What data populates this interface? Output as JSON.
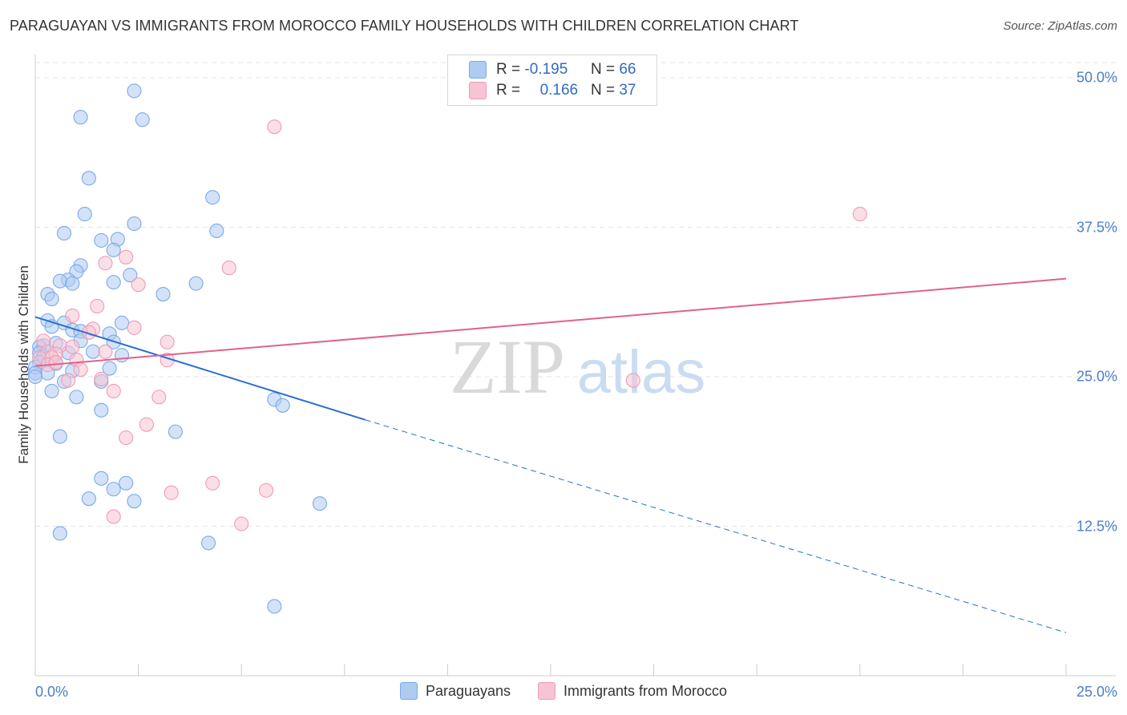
{
  "chart_data": {
    "type": "scatter",
    "title": "PARAGUAYAN VS IMMIGRANTS FROM MOROCCO FAMILY HOUSEHOLDS WITH CHILDREN CORRELATION CHART",
    "source": "Source: ZipAtlas.com",
    "xlabel": "",
    "ylabel": "Family Households with Children",
    "xlim": [
      0,
      25
    ],
    "ylim": [
      0,
      52
    ],
    "x_tick_labels": {
      "left": "0.0%",
      "right": "25.0%"
    },
    "y_ticks": [
      {
        "value": 12.5,
        "label": "12.5%"
      },
      {
        "value": 25.0,
        "label": "25.0%"
      },
      {
        "value": 37.5,
        "label": "37.5%"
      },
      {
        "value": 50.0,
        "label": "50.0%"
      }
    ],
    "watermark": {
      "zip": "ZIP",
      "atlas": "atlas"
    },
    "legend": {
      "rows": [
        {
          "r_label": "R =",
          "r_value": "-0.195",
          "n_label": "N =",
          "n_value": "66"
        },
        {
          "r_label": "R =",
          "r_value": "0.166",
          "n_label": "N =",
          "n_value": "37"
        }
      ]
    },
    "series": [
      {
        "name": "Paraguayans",
        "color": "#7aaae8",
        "fill": "#aecbf2",
        "line_color": "#2a6fd1",
        "trend": {
          "x_start": 0.0,
          "y_start": 30.0,
          "x_solid_end": 8.0,
          "y_solid_end": 21.4,
          "x_end": 25.0,
          "y_end": 3.6
        },
        "points": [
          [
            2.4,
            48.9
          ],
          [
            1.1,
            46.7
          ],
          [
            2.6,
            46.5
          ],
          [
            1.3,
            41.6
          ],
          [
            4.3,
            40.0
          ],
          [
            1.2,
            38.6
          ],
          [
            2.4,
            37.8
          ],
          [
            0.7,
            37.0
          ],
          [
            4.4,
            37.2
          ],
          [
            1.6,
            36.4
          ],
          [
            2.0,
            36.5
          ],
          [
            1.9,
            35.6
          ],
          [
            1.1,
            34.3
          ],
          [
            1.0,
            33.8
          ],
          [
            2.3,
            33.5
          ],
          [
            0.8,
            33.1
          ],
          [
            0.6,
            33.0
          ],
          [
            0.9,
            32.8
          ],
          [
            1.9,
            32.9
          ],
          [
            3.9,
            32.8
          ],
          [
            0.3,
            31.9
          ],
          [
            3.1,
            31.9
          ],
          [
            0.4,
            31.5
          ],
          [
            0.3,
            29.7
          ],
          [
            0.7,
            29.5
          ],
          [
            2.1,
            29.5
          ],
          [
            0.4,
            29.2
          ],
          [
            0.9,
            28.9
          ],
          [
            1.1,
            28.8
          ],
          [
            1.8,
            28.6
          ],
          [
            1.1,
            28.0
          ],
          [
            1.9,
            27.9
          ],
          [
            0.2,
            27.6
          ],
          [
            0.1,
            27.5
          ],
          [
            0.5,
            27.8
          ],
          [
            0.1,
            27.0
          ],
          [
            0.2,
            26.7
          ],
          [
            0.8,
            27.0
          ],
          [
            1.4,
            27.1
          ],
          [
            2.1,
            26.8
          ],
          [
            0.1,
            26.2
          ],
          [
            0.5,
            26.1
          ],
          [
            0.0,
            25.8
          ],
          [
            1.8,
            25.7
          ],
          [
            0.9,
            25.5
          ],
          [
            0.0,
            25.3
          ],
          [
            0.3,
            25.3
          ],
          [
            0.0,
            25.0
          ],
          [
            0.7,
            24.6
          ],
          [
            1.6,
            24.6
          ],
          [
            0.4,
            23.8
          ],
          [
            1.0,
            23.3
          ],
          [
            5.8,
            23.1
          ],
          [
            6.0,
            22.6
          ],
          [
            1.6,
            22.2
          ],
          [
            3.4,
            20.4
          ],
          [
            0.6,
            20.0
          ],
          [
            1.6,
            16.5
          ],
          [
            2.2,
            16.1
          ],
          [
            1.9,
            15.6
          ],
          [
            1.3,
            14.8
          ],
          [
            2.4,
            14.6
          ],
          [
            6.9,
            14.4
          ],
          [
            0.6,
            11.9
          ],
          [
            4.2,
            11.1
          ],
          [
            5.8,
            5.8
          ]
        ]
      },
      {
        "name": "Immigrants from Morocco",
        "color": "#f29ab5",
        "fill": "#f7c4d4",
        "line_color": "#e0628c",
        "trend": {
          "x_start": 0.0,
          "y_start": 25.9,
          "x_end": 25.0,
          "y_end": 33.2
        },
        "points": [
          [
            5.8,
            45.9
          ],
          [
            20.0,
            38.6
          ],
          [
            2.2,
            35.0
          ],
          [
            1.7,
            34.5
          ],
          [
            4.7,
            34.1
          ],
          [
            2.5,
            32.7
          ],
          [
            1.5,
            30.9
          ],
          [
            2.4,
            29.1
          ],
          [
            1.4,
            29.0
          ],
          [
            1.3,
            28.7
          ],
          [
            3.2,
            27.9
          ],
          [
            0.2,
            28.0
          ],
          [
            0.6,
            27.6
          ],
          [
            0.9,
            27.5
          ],
          [
            0.3,
            27.1
          ],
          [
            0.5,
            26.9
          ],
          [
            1.7,
            27.1
          ],
          [
            0.1,
            26.6
          ],
          [
            0.4,
            26.6
          ],
          [
            1.0,
            26.4
          ],
          [
            3.2,
            26.4
          ],
          [
            0.3,
            26.0
          ],
          [
            0.5,
            26.2
          ],
          [
            1.1,
            25.6
          ],
          [
            1.6,
            24.8
          ],
          [
            0.8,
            24.7
          ],
          [
            14.5,
            24.7
          ],
          [
            1.9,
            23.8
          ],
          [
            3.0,
            23.3
          ],
          [
            2.7,
            21.0
          ],
          [
            2.2,
            19.9
          ],
          [
            4.3,
            16.1
          ],
          [
            3.3,
            15.3
          ],
          [
            5.6,
            15.5
          ],
          [
            1.9,
            13.3
          ],
          [
            5.0,
            12.7
          ],
          [
            0.9,
            30.1
          ]
        ]
      }
    ]
  }
}
